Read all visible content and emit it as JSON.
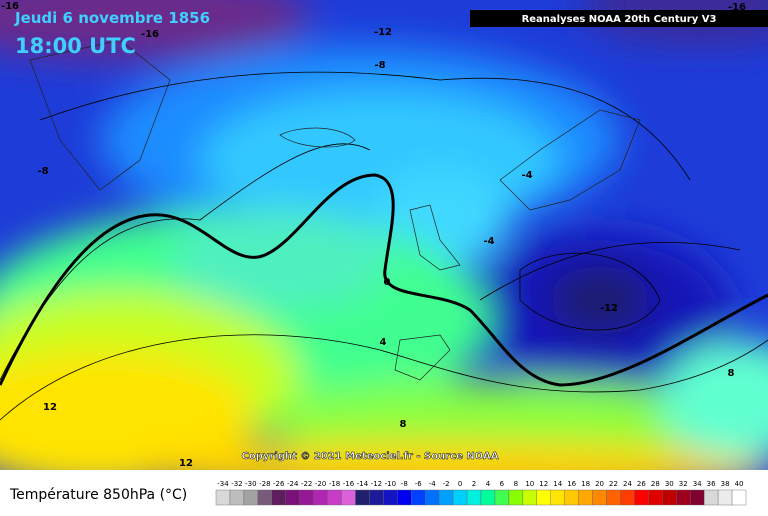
{
  "header": {
    "title": "Jeudi 6 novembre 1856",
    "time": "18:00 UTC",
    "source": "Reanalyses NOAA 20th Century V3"
  },
  "map": {
    "contour_labels": [
      "-16",
      "-16",
      "-12",
      "-8",
      "-8",
      "-4",
      "-4",
      "0",
      "-12",
      "4",
      "8",
      "12",
      "12",
      "-16",
      "8"
    ],
    "copyright": "Copyright © 2021 Meteociel.fr - Source NOAA"
  },
  "legend": {
    "title": "Température 850hPa (°C)",
    "labels": [
      "-34",
      "-32",
      "-30",
      "-28",
      "-26",
      "-24",
      "-22",
      "-20",
      "-18",
      "-16",
      "-14",
      "-12",
      "-10",
      "-8",
      "-6",
      "-4",
      "-2",
      "0",
      "2",
      "4",
      "6",
      "8",
      "10",
      "12",
      "14",
      "16",
      "18",
      "20",
      "22",
      "24",
      "26",
      "28",
      "30",
      "32",
      "34",
      "36",
      "38",
      "40"
    ],
    "colors": [
      "#d8d8d8",
      "#bdbdbd",
      "#a3a3a3",
      "#7a5a7a",
      "#5e1e5e",
      "#7a107a",
      "#961896",
      "#b026b0",
      "#c83cc8",
      "#dc60dc",
      "#20206e",
      "#1c1c9a",
      "#1414c4",
      "#0000f0",
      "#0040ff",
      "#0070ff",
      "#00a0ff",
      "#00d0ff",
      "#00f0e0",
      "#00ff9c",
      "#40ff50",
      "#88ff00",
      "#c8ff00",
      "#ffff00",
      "#ffe400",
      "#ffc800",
      "#ffa800",
      "#ff8800",
      "#ff6400",
      "#ff3c00",
      "#ff0000",
      "#e00000",
      "#c00000",
      "#a00020",
      "#800030",
      "#d8d8d8",
      "#ececec",
      "#ffffff"
    ]
  }
}
